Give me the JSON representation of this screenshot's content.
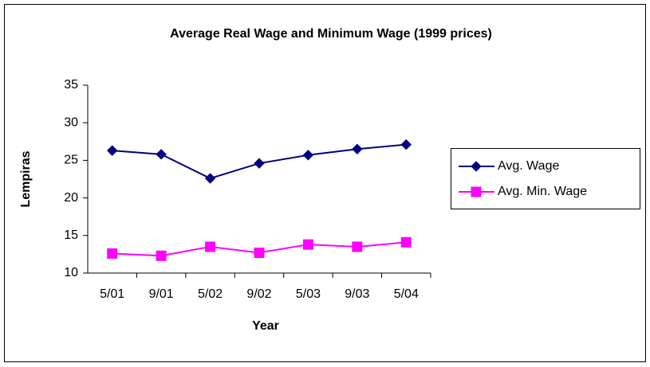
{
  "chart_data": {
    "type": "line",
    "title": "Average Real Wage and Minimum Wage (1999 prices)",
    "xlabel": "Year",
    "ylabel": "Lempiras",
    "categories": [
      "5/01",
      "9/01",
      "5/02",
      "9/02",
      "5/03",
      "9/03",
      "5/04"
    ],
    "series": [
      {
        "name": "Avg. Wage",
        "color": "#000080",
        "marker": "diamond",
        "values": [
          26.3,
          25.8,
          22.6,
          24.6,
          25.7,
          26.5,
          27.1
        ]
      },
      {
        "name": "Avg. Min. Wage",
        "color": "#ff00ff",
        "marker": "square",
        "values": [
          12.6,
          12.3,
          13.5,
          12.7,
          13.8,
          13.5,
          14.1
        ]
      }
    ],
    "ylim": [
      10,
      35
    ],
    "yticks": [
      10,
      15,
      20,
      25,
      30,
      35
    ],
    "grid": false,
    "legend": "right"
  }
}
